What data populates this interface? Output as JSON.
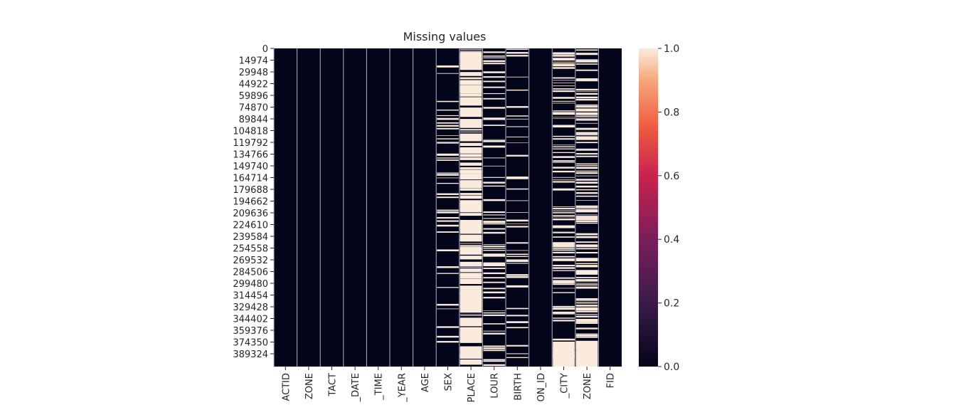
{
  "chart_data": {
    "type": "heatmap",
    "title": "Missing values",
    "columns": [
      "ACTID",
      "ZONE",
      "TACT",
      "_DATE",
      "_TIME",
      "_YEAR",
      "AGE",
      "SEX",
      "PLACE",
      "LOUR",
      "BIRTH",
      "ON_ID",
      "_CITY",
      "ZONE",
      "FID"
    ],
    "row_ticks": [
      "0",
      "14974",
      "29948",
      "44922",
      "59896",
      "74870",
      "89844",
      "104818",
      "119792",
      "134766",
      "149740",
      "164714",
      "179688",
      "194662",
      "209636",
      "224610",
      "239584",
      "254558",
      "269532",
      "284506",
      "299480",
      "314454",
      "329428",
      "344402",
      "359376",
      "374350",
      "389324"
    ],
    "row_count": 402000,
    "colorbar": {
      "ticks": [
        "0.0",
        "0.2",
        "0.4",
        "0.6",
        "0.8",
        "1.0"
      ],
      "range": [
        0,
        1
      ]
    },
    "missing_fraction": {
      "ACTID": 0.0,
      "ZONE": 0.0,
      "TACT": 0.0,
      "_DATE": 0.0,
      "_TIME": 0.0,
      "_YEAR": 0.0,
      "AGE": 0.0,
      "SEX": 0.02,
      "PLACE": 0.7,
      "LOUR": 0.12,
      "BIRTH": 0.005,
      "ON_ID": 0.0,
      "_CITY": 0.25,
      "ZONE_2": 0.45,
      "FID": 0.0
    }
  }
}
